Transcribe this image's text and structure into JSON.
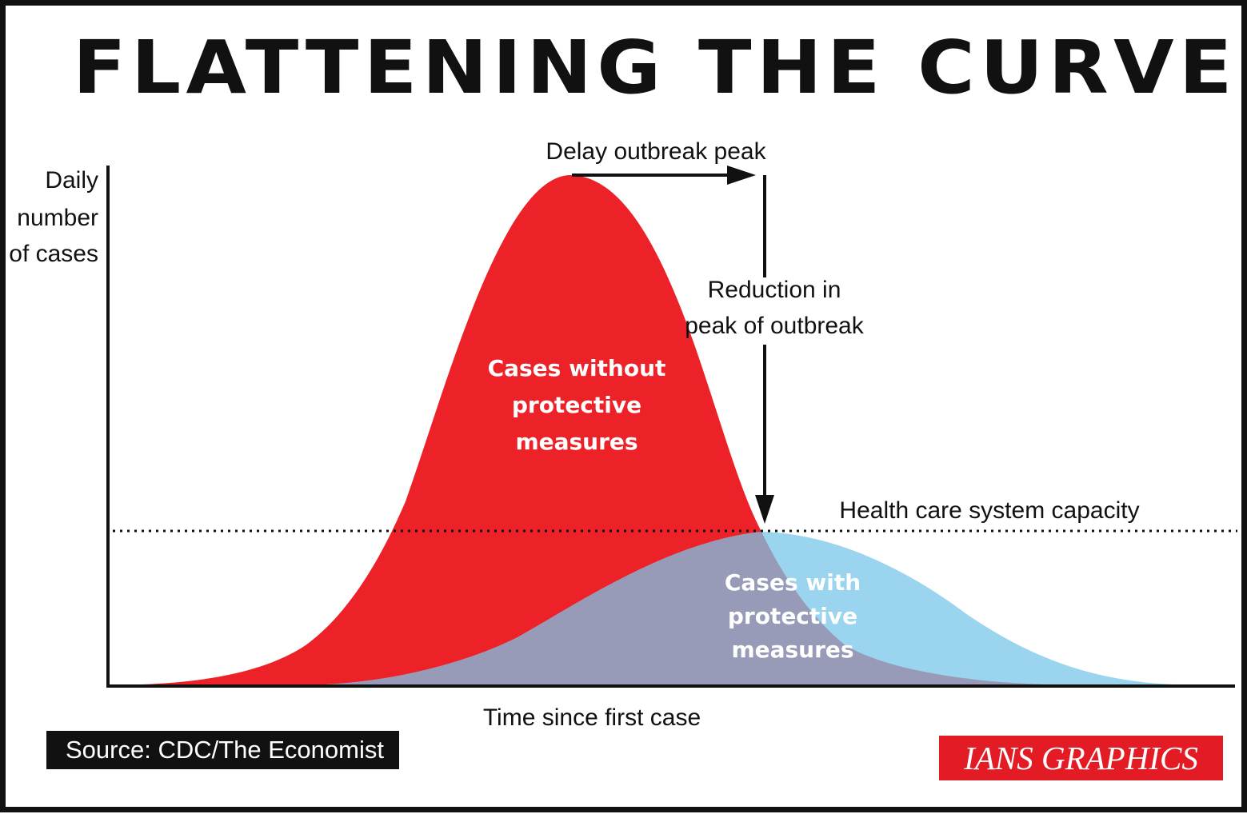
{
  "title": "FLATTENING THE CURVE",
  "y_axis_label": [
    "Daily",
    "number",
    "of cases"
  ],
  "x_axis_label": "Time since first case",
  "annotations": {
    "delay_peak": "Delay outbreak peak",
    "reduction_peak": [
      "Reduction in",
      "peak of outbreak"
    ],
    "capacity": "Health care system capacity"
  },
  "series": [
    {
      "name": [
        "Cases without",
        "protective",
        "measures"
      ],
      "color": "#ed2229"
    },
    {
      "name": [
        "Cases with",
        "protective",
        "measures"
      ],
      "color": "#9ad4ee"
    }
  ],
  "overlap_color": "#979bb8",
  "source": "Source: CDC/The Economist",
  "brand": "IANS GRAPHICS"
}
